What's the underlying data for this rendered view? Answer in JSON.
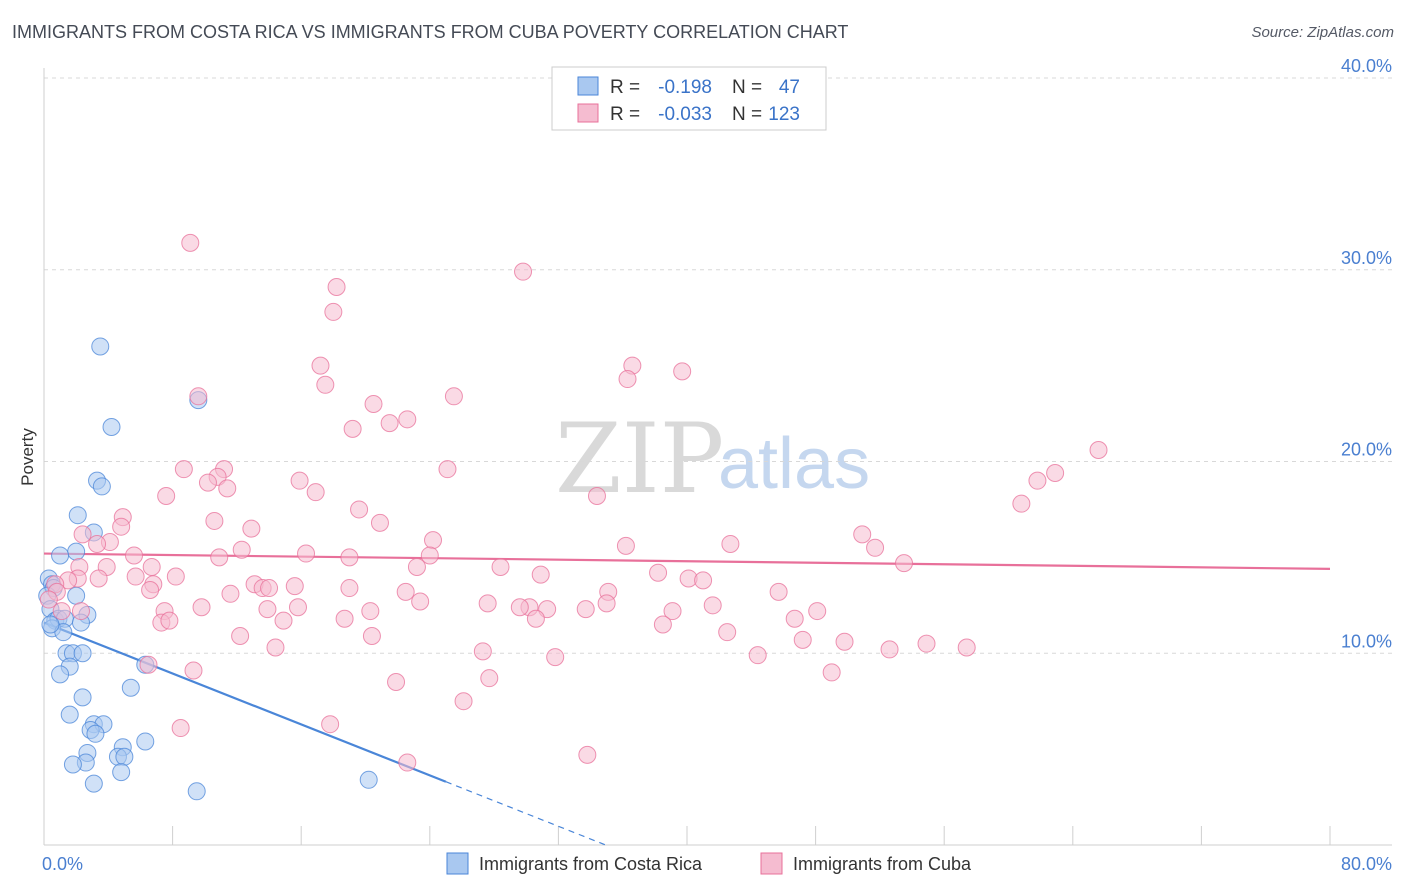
{
  "title": "IMMIGRANTS FROM COSTA RICA VS IMMIGRANTS FROM CUBA POVERTY CORRELATION CHART",
  "source": "Source: ZipAtlas.com",
  "watermark": {
    "zip": "ZIP",
    "atlas": "atlas"
  },
  "stats": {
    "costa_rica": {
      "r_label": "R =",
      "r_value": "-0.198",
      "n_label": "N =",
      "n_value": "47"
    },
    "cuba": {
      "r_label": "R =",
      "r_value": "-0.033",
      "n_label": "N =",
      "n_value": "123"
    }
  },
  "chart_data": {
    "type": "scatter",
    "ylabel": "Poverty",
    "xlim": [
      0,
      80
    ],
    "ylim": [
      0,
      40
    ],
    "x_tick_labels": [
      {
        "value": 0,
        "label": "0.0%"
      },
      {
        "value": 80,
        "label": "80.0%"
      }
    ],
    "y_tick_labels": [
      {
        "value": 10,
        "label": "10.0%"
      },
      {
        "value": 20,
        "label": "20.0%"
      },
      {
        "value": 30,
        "label": "30.0%"
      },
      {
        "value": 40,
        "label": "40.0%"
      }
    ],
    "colors": {
      "costa_rica": "#4a86d8",
      "cuba": "#e8709a",
      "costa_rica_fill": "#a9c8f0",
      "cuba_fill": "#f5bcd0"
    },
    "series": [
      {
        "name": "Immigrants from Costa Rica",
        "key": "costa_rica",
        "trend": {
          "x0": 0,
          "y0": 11.6,
          "x1": 25,
          "y1": 3.3,
          "dash_to_x": 35
        },
        "points": [
          [
            3.5,
            26
          ],
          [
            4.2,
            21.8
          ],
          [
            9.6,
            23.2
          ],
          [
            3.3,
            19
          ],
          [
            3.6,
            18.7
          ],
          [
            2.1,
            17.2
          ],
          [
            3.1,
            16.3
          ],
          [
            2.0,
            15.3
          ],
          [
            1.0,
            15.1
          ],
          [
            0.3,
            13.9
          ],
          [
            0.5,
            13.6
          ],
          [
            0.6,
            13.4
          ],
          [
            0.2,
            13.0
          ],
          [
            2.0,
            13.0
          ],
          [
            0.4,
            12.3
          ],
          [
            0.7,
            11.7
          ],
          [
            0.9,
            11.8
          ],
          [
            1.3,
            11.8
          ],
          [
            2.7,
            12.0
          ],
          [
            2.3,
            11.6
          ],
          [
            0.5,
            11.3
          ],
          [
            1.2,
            11.1
          ],
          [
            0.4,
            11.5
          ],
          [
            1.4,
            10.0
          ],
          [
            1.8,
            10.0
          ],
          [
            2.4,
            10.0
          ],
          [
            1.6,
            9.3
          ],
          [
            6.3,
            9.4
          ],
          [
            1.0,
            8.9
          ],
          [
            5.4,
            8.2
          ],
          [
            2.4,
            7.7
          ],
          [
            1.6,
            6.8
          ],
          [
            3.1,
            6.3
          ],
          [
            3.7,
            6.3
          ],
          [
            2.9,
            6.0
          ],
          [
            3.2,
            5.8
          ],
          [
            6.3,
            5.4
          ],
          [
            4.9,
            5.1
          ],
          [
            2.7,
            4.8
          ],
          [
            4.6,
            4.6
          ],
          [
            5.0,
            4.6
          ],
          [
            2.6,
            4.3
          ],
          [
            1.8,
            4.2
          ],
          [
            4.8,
            3.8
          ],
          [
            3.1,
            3.2
          ],
          [
            20.2,
            3.4
          ],
          [
            9.5,
            2.8
          ]
        ]
      },
      {
        "name": "Immigrants from Cuba",
        "key": "cuba",
        "trend": {
          "x0": 0,
          "y0": 15.2,
          "x1": 80,
          "y1": 14.4
        },
        "points": [
          [
            9.1,
            31.4
          ],
          [
            29.8,
            29.9
          ],
          [
            18.2,
            29.1
          ],
          [
            18.0,
            27.8
          ],
          [
            17.2,
            25.0
          ],
          [
            17.5,
            24.0
          ],
          [
            36.6,
            25.0
          ],
          [
            36.3,
            24.3
          ],
          [
            39.7,
            24.7
          ],
          [
            9.6,
            23.4
          ],
          [
            25.5,
            23.4
          ],
          [
            20.5,
            23.0
          ],
          [
            22.6,
            22.2
          ],
          [
            21.5,
            22.0
          ],
          [
            19.2,
            21.7
          ],
          [
            8.7,
            19.6
          ],
          [
            11.2,
            19.6
          ],
          [
            10.8,
            19.2
          ],
          [
            25.1,
            19.6
          ],
          [
            15.9,
            19.0
          ],
          [
            10.2,
            18.9
          ],
          [
            11.4,
            18.6
          ],
          [
            16.9,
            18.4
          ],
          [
            7.6,
            18.2
          ],
          [
            34.4,
            18.2
          ],
          [
            65.6,
            20.6
          ],
          [
            62.9,
            19.4
          ],
          [
            61.8,
            19.0
          ],
          [
            60.8,
            17.8
          ],
          [
            19.6,
            17.5
          ],
          [
            4.9,
            17.1
          ],
          [
            10.6,
            16.9
          ],
          [
            20.9,
            16.8
          ],
          [
            4.8,
            16.6
          ],
          [
            12.9,
            16.5
          ],
          [
            2.4,
            16.2
          ],
          [
            4.1,
            15.8
          ],
          [
            24.2,
            15.9
          ],
          [
            42.7,
            15.7
          ],
          [
            36.2,
            15.6
          ],
          [
            50.9,
            16.2
          ],
          [
            51.7,
            15.5
          ],
          [
            12.3,
            15.4
          ],
          [
            16.3,
            15.2
          ],
          [
            19.0,
            15.0
          ],
          [
            24.0,
            15.1
          ],
          [
            5.6,
            15.1
          ],
          [
            3.3,
            15.7
          ],
          [
            10.9,
            15.0
          ],
          [
            53.5,
            14.7
          ],
          [
            2.2,
            14.5
          ],
          [
            3.9,
            14.5
          ],
          [
            6.7,
            14.5
          ],
          [
            23.2,
            14.5
          ],
          [
            28.4,
            14.5
          ],
          [
            30.9,
            14.1
          ],
          [
            38.2,
            14.2
          ],
          [
            5.7,
            14.0
          ],
          [
            8.2,
            14.0
          ],
          [
            2.1,
            13.9
          ],
          [
            1.5,
            13.8
          ],
          [
            3.4,
            13.9
          ],
          [
            40.1,
            13.9
          ],
          [
            41.0,
            13.8
          ],
          [
            0.7,
            13.6
          ],
          [
            6.8,
            13.6
          ],
          [
            13.1,
            13.6
          ],
          [
            15.6,
            13.5
          ],
          [
            19.0,
            13.4
          ],
          [
            13.6,
            13.4
          ],
          [
            14.0,
            13.4
          ],
          [
            6.6,
            13.3
          ],
          [
            0.8,
            13.2
          ],
          [
            11.6,
            13.1
          ],
          [
            22.5,
            13.2
          ],
          [
            35.1,
            13.2
          ],
          [
            45.7,
            13.2
          ],
          [
            23.4,
            12.7
          ],
          [
            27.6,
            12.6
          ],
          [
            35.0,
            12.6
          ],
          [
            30.2,
            12.4
          ],
          [
            31.3,
            12.3
          ],
          [
            29.6,
            12.4
          ],
          [
            33.7,
            12.3
          ],
          [
            41.6,
            12.5
          ],
          [
            9.8,
            12.4
          ],
          [
            13.9,
            12.3
          ],
          [
            20.3,
            12.2
          ],
          [
            15.8,
            12.4
          ],
          [
            39.1,
            12.2
          ],
          [
            48.1,
            12.2
          ],
          [
            1.1,
            12.2
          ],
          [
            2.3,
            12.2
          ],
          [
            7.5,
            12.2
          ],
          [
            0.3,
            12.8
          ],
          [
            46.7,
            11.8
          ],
          [
            14.9,
            11.7
          ],
          [
            18.7,
            11.8
          ],
          [
            30.6,
            11.8
          ],
          [
            38.5,
            11.5
          ],
          [
            7.3,
            11.6
          ],
          [
            7.8,
            11.7
          ],
          [
            42.5,
            11.1
          ],
          [
            12.2,
            10.9
          ],
          [
            20.4,
            10.9
          ],
          [
            47.2,
            10.7
          ],
          [
            49.8,
            10.6
          ],
          [
            54.9,
            10.5
          ],
          [
            57.4,
            10.3
          ],
          [
            52.6,
            10.2
          ],
          [
            14.4,
            10.3
          ],
          [
            27.3,
            10.1
          ],
          [
            31.8,
            9.8
          ],
          [
            44.4,
            9.9
          ],
          [
            6.5,
            9.4
          ],
          [
            9.3,
            9.1
          ],
          [
            27.7,
            8.7
          ],
          [
            49.0,
            9.0
          ],
          [
            21.9,
            8.5
          ],
          [
            26.1,
            7.5
          ],
          [
            17.8,
            6.3
          ],
          [
            8.5,
            6.1
          ],
          [
            33.8,
            4.7
          ],
          [
            22.6,
            4.3
          ]
        ]
      }
    ]
  },
  "legend": {
    "items": [
      {
        "key": "costa_rica",
        "label": "Immigrants from Costa Rica"
      },
      {
        "key": "cuba",
        "label": "Immigrants from Cuba"
      }
    ]
  }
}
